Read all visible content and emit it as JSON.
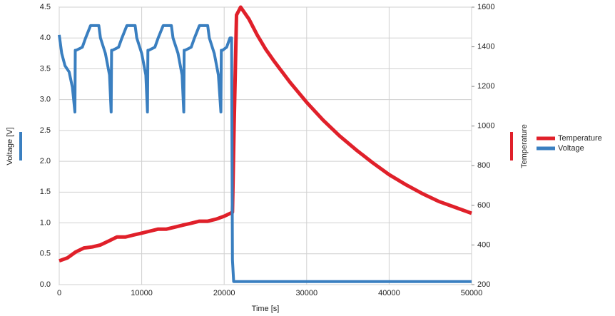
{
  "chart_data": {
    "type": "line",
    "xlabel": "Time [s]",
    "ylabel": "Voltage [V]",
    "y2label": "Temperature",
    "xlim": [
      0,
      50000
    ],
    "xticks": [
      0,
      10000,
      20000,
      30000,
      40000,
      50000
    ],
    "ylim": [
      0,
      4.5
    ],
    "yticks": [
      {
        "value": 0,
        "label": "0.0"
      },
      {
        "value": 0.5,
        "label": "0.5"
      },
      {
        "value": 1,
        "label": "1.0"
      },
      {
        "value": 1.5,
        "label": "1.5"
      },
      {
        "value": 2,
        "label": "2.0"
      },
      {
        "value": 2.5,
        "label": "2.5"
      },
      {
        "value": 3,
        "label": "3.0"
      },
      {
        "value": 3.5,
        "label": "3.5"
      },
      {
        "value": 4,
        "label": "4.0"
      },
      {
        "value": 4.5,
        "label": "4.5"
      }
    ],
    "y2lim": [
      200,
      1600
    ],
    "y2ticks": [
      200,
      400,
      600,
      800,
      1000,
      1200,
      1400,
      1600
    ],
    "grid": true,
    "legend": "right",
    "series": [
      {
        "name": "Temperature",
        "color": "#e0202a",
        "axis": "y2",
        "x": [
          0,
          1000,
          2000,
          3000,
          4000,
          5000,
          6000,
          7000,
          8000,
          9000,
          10000,
          11000,
          12000,
          13000,
          14000,
          15000,
          16000,
          17000,
          18000,
          19000,
          20000,
          21000,
          21200,
          21500,
          22000,
          23000,
          24000,
          25000,
          26000,
          28000,
          30000,
          32000,
          34000,
          36000,
          38000,
          40000,
          42000,
          44000,
          46000,
          48000,
          50000
        ],
        "values": [
          320,
          335,
          365,
          385,
          390,
          400,
          420,
          440,
          440,
          450,
          460,
          470,
          480,
          480,
          490,
          500,
          510,
          520,
          520,
          530,
          545,
          565,
          1000,
          1560,
          1600,
          1540,
          1460,
          1390,
          1330,
          1220,
          1120,
          1030,
          950,
          880,
          815,
          755,
          705,
          660,
          620,
          590,
          560
        ]
      },
      {
        "name": "Voltage",
        "color": "#3a7fc0",
        "x": [
          0,
          300,
          700,
          1200,
          1600,
          1900,
          1950,
          2050,
          2800,
          3200,
          3800,
          4800,
          5000,
          5600,
          6100,
          6300,
          6350,
          6450,
          7200,
          7600,
          8200,
          9200,
          9400,
          10000,
          10500,
          10700,
          10750,
          10850,
          11600,
          12000,
          12600,
          13600,
          13800,
          14400,
          14900,
          15100,
          15150,
          15250,
          16000,
          16400,
          17000,
          18000,
          18200,
          18800,
          19300,
          19600,
          19650,
          19800,
          20300,
          20700,
          20900,
          21000,
          21150,
          50000
        ],
        "values": [
          4.05,
          3.75,
          3.55,
          3.45,
          3.2,
          2.8,
          3.8,
          3.8,
          3.85,
          4.0,
          4.2,
          4.2,
          4.0,
          3.75,
          3.4,
          2.8,
          3.8,
          3.8,
          3.85,
          4.0,
          4.2,
          4.2,
          4.0,
          3.75,
          3.4,
          2.8,
          3.8,
          3.8,
          3.85,
          4.0,
          4.2,
          4.2,
          4.0,
          3.75,
          3.4,
          2.8,
          3.8,
          3.8,
          3.85,
          4.0,
          4.2,
          4.2,
          4.0,
          3.75,
          3.4,
          2.8,
          3.8,
          3.8,
          3.85,
          4.0,
          4.0,
          0.4,
          0.05,
          0.05
        ]
      }
    ]
  }
}
